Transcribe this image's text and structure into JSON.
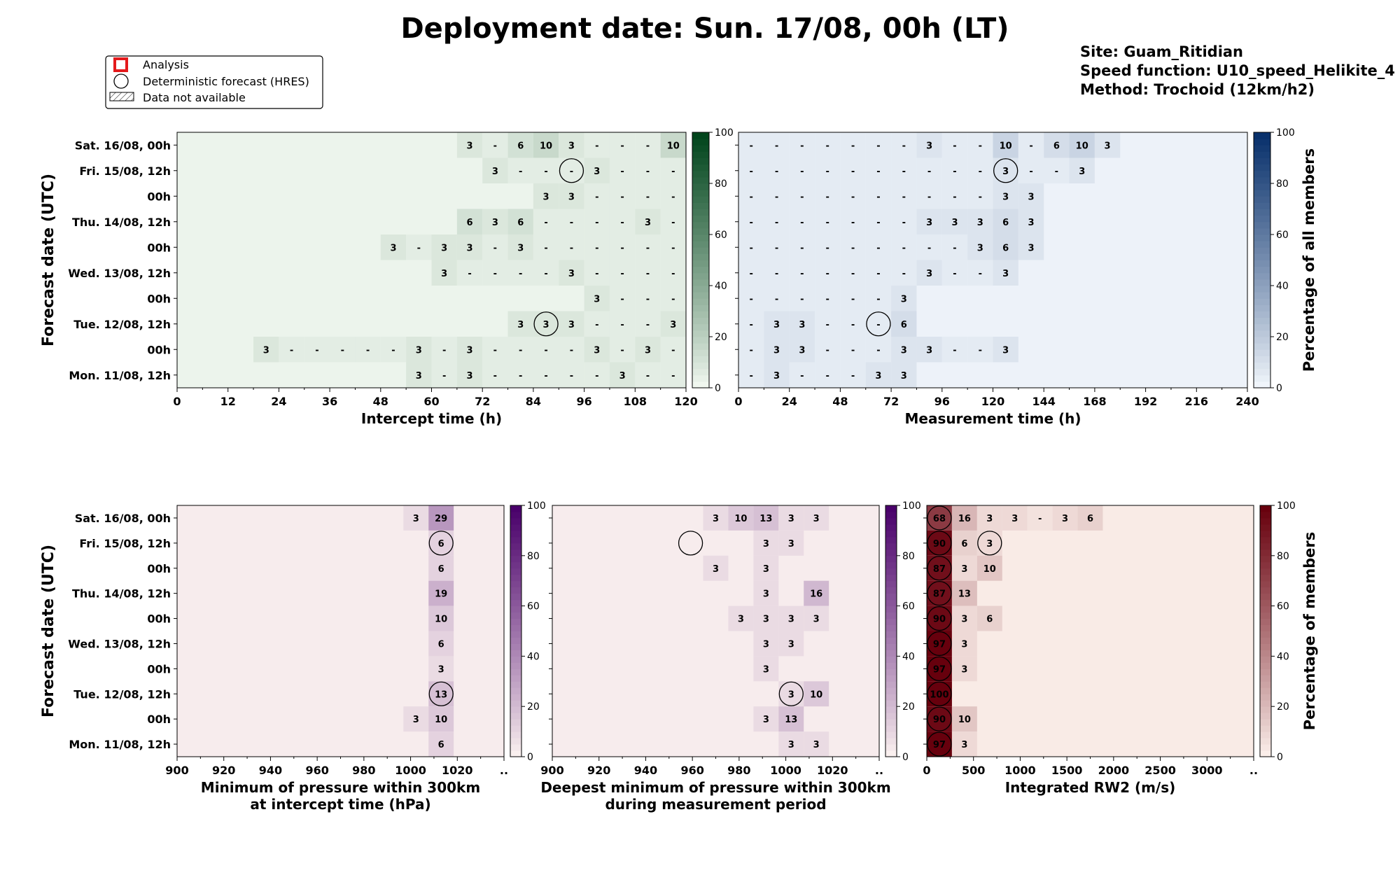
{
  "title": "Deployment date: Sun. 17/08, 00h (LT)",
  "info": {
    "site": "Site: Guam_Ritidian",
    "speed_function": "Speed function: U10_speed_Helikite_4",
    "method": "Method: Trochoid (12km/h2)"
  },
  "legend": {
    "analysis": "Analysis",
    "hres": "Deterministic forecast (HRES)",
    "na": "Data not available"
  },
  "colors": {
    "green": [
      "#f7fcf5",
      "#00441b"
    ],
    "blue": [
      "#f7fbff",
      "#08306b"
    ],
    "rdpu": [
      "#fff7f3",
      "#49006a"
    ],
    "reds": [
      "#fff5f0",
      "#67000d"
    ],
    "analysis_marker": "#e41a1c"
  },
  "chart_data": [
    {
      "id": "intercept",
      "type": "heatmap",
      "xlabel": "Intercept time (h)",
      "ylabel": "Forecast date (UTC)",
      "rows": [
        "Sat. 16/08, 00h",
        "Fri. 15/08, 12h",
        "00h",
        "Thu. 14/08, 12h",
        "00h",
        "Wed. 13/08, 12h",
        "00h",
        "Tue. 12/08, 12h",
        "00h",
        "Mon. 11/08, 12h"
      ],
      "xlim": [
        0,
        120
      ],
      "bin_width": 6,
      "xticks": [
        "0",
        "12",
        "24",
        "36",
        "48",
        "60",
        "72",
        "84",
        "96",
        "108",
        "120"
      ],
      "colormap": "green",
      "colorbar": {
        "min": 0,
        "max": 100,
        "ticks": [
          "0",
          "20",
          "40",
          "60",
          "80",
          "100"
        ],
        "label": ""
      },
      "cells": [
        [
          null,
          null,
          null,
          null,
          null,
          null,
          null,
          null,
          null,
          null,
          null,
          3,
          "-",
          6,
          10,
          3,
          "-",
          "-",
          "-",
          10
        ],
        [
          null,
          null,
          null,
          null,
          null,
          null,
          null,
          null,
          null,
          null,
          null,
          null,
          3,
          "-",
          "-",
          "-",
          3,
          "-",
          "-",
          "-"
        ],
        [
          null,
          null,
          null,
          null,
          null,
          null,
          null,
          null,
          null,
          null,
          null,
          null,
          null,
          null,
          3,
          3,
          "-",
          "-",
          "-",
          "-"
        ],
        [
          null,
          null,
          null,
          null,
          null,
          null,
          null,
          null,
          null,
          null,
          null,
          6,
          3,
          6,
          "-",
          "-",
          "-",
          "-",
          3,
          "-"
        ],
        [
          null,
          null,
          null,
          null,
          null,
          null,
          null,
          null,
          3,
          "-",
          3,
          3,
          "-",
          3,
          "-",
          "-",
          "-",
          "-",
          "-",
          "-"
        ],
        [
          null,
          null,
          null,
          null,
          null,
          null,
          null,
          null,
          null,
          null,
          3,
          "-",
          "-",
          "-",
          "-",
          3,
          "-",
          "-",
          "-",
          "-"
        ],
        [
          null,
          null,
          null,
          null,
          null,
          null,
          null,
          null,
          null,
          null,
          null,
          null,
          null,
          null,
          null,
          null,
          3,
          "-",
          "-",
          "-"
        ],
        [
          null,
          null,
          null,
          null,
          null,
          null,
          null,
          null,
          null,
          null,
          null,
          null,
          null,
          3,
          3,
          3,
          "-",
          "-",
          "-",
          3
        ],
        [
          null,
          null,
          null,
          3,
          "-",
          "-",
          "-",
          "-",
          "-",
          3,
          "-",
          3,
          "-",
          "-",
          "-",
          "-",
          3,
          "-",
          3,
          "-"
        ],
        [
          null,
          null,
          null,
          null,
          null,
          null,
          null,
          null,
          null,
          3,
          "-",
          3,
          "-",
          "-",
          "-",
          "-",
          "-",
          3,
          "-",
          "-"
        ]
      ],
      "hres": [
        {
          "row": 1,
          "x": 93
        },
        {
          "row": 7,
          "x": 87
        }
      ]
    },
    {
      "id": "measurement",
      "type": "heatmap",
      "xlabel": "Measurement time (h)",
      "ylabel": "",
      "rows": [
        "Sat. 16/08, 00h",
        "Fri. 15/08, 12h",
        "00h",
        "Thu. 14/08, 12h",
        "00h",
        "Wed. 13/08, 12h",
        "00h",
        "Tue. 12/08, 12h",
        "00h",
        "Mon. 11/08, 12h"
      ],
      "xlim": [
        0,
        240
      ],
      "bin_width": 12,
      "xticks": [
        "0",
        "24",
        "48",
        "72",
        "96",
        "120",
        "144",
        "168",
        "192",
        "216",
        "240"
      ],
      "colormap": "blue",
      "colorbar": {
        "min": 0,
        "max": 100,
        "ticks": [
          "0",
          "20",
          "40",
          "60",
          "80",
          "100"
        ],
        "label": "Percentage of all members"
      },
      "cells": [
        [
          "-",
          "-",
          "-",
          "-",
          "-",
          "-",
          "-",
          3,
          "-",
          "-",
          10,
          "-",
          6,
          10,
          3
        ],
        [
          "-",
          "-",
          "-",
          "-",
          "-",
          "-",
          "-",
          "-",
          "-",
          "-",
          3,
          "-",
          "-",
          3
        ],
        [
          "-",
          "-",
          "-",
          "-",
          "-",
          "-",
          "-",
          "-",
          "-",
          "-",
          3,
          3
        ],
        [
          "-",
          "-",
          "-",
          "-",
          "-",
          "-",
          "-",
          3,
          3,
          3,
          6,
          3
        ],
        [
          "-",
          "-",
          "-",
          "-",
          "-",
          "-",
          "-",
          "-",
          "-",
          3,
          6,
          3
        ],
        [
          "-",
          "-",
          "-",
          "-",
          "-",
          "-",
          "-",
          3,
          "-",
          "-",
          3
        ],
        [
          "-",
          "-",
          "-",
          "-",
          "-",
          "-",
          3
        ],
        [
          "-",
          3,
          3,
          "-",
          "-",
          "-",
          6
        ],
        [
          "-",
          3,
          3,
          "-",
          "-",
          "-",
          3,
          3,
          "-",
          "-",
          3
        ],
        [
          "-",
          3,
          "-",
          "-",
          "-",
          3,
          3
        ]
      ],
      "hres": [
        {
          "row": 1,
          "x": 126
        },
        {
          "row": 7,
          "x": 66
        }
      ]
    },
    {
      "id": "min-pressure",
      "type": "heatmap",
      "xlabel": [
        "Minimum of pressure within 300km",
        "at intercept time (hPa)"
      ],
      "ylabel": "Forecast date (UTC)",
      "rows": [
        "Sat. 16/08, 00h",
        "Fri. 15/08, 12h",
        "00h",
        "Thu. 14/08, 12h",
        "00h",
        "Wed. 13/08, 12h",
        "00h",
        "Tue. 12/08, 12h",
        "00h",
        "Mon. 11/08, 12h"
      ],
      "xlim": [
        900,
        1030
      ],
      "bin_width": 10,
      "bin_start": 900,
      "xticks": [
        "900",
        "920",
        "940",
        "960",
        "980",
        "1000",
        "1020",
        ".."
      ],
      "colormap": "rdpu",
      "colorbar": {
        "min": 0,
        "max": 100,
        "ticks": [
          "0",
          "20",
          "40",
          "60",
          "80",
          "100"
        ],
        "label": ""
      },
      "cells": [
        [
          null,
          null,
          null,
          null,
          null,
          null,
          null,
          null,
          null,
          3,
          29
        ],
        [
          null,
          null,
          null,
          null,
          null,
          null,
          null,
          null,
          null,
          null,
          6
        ],
        [
          null,
          null,
          null,
          null,
          null,
          null,
          null,
          null,
          null,
          null,
          6
        ],
        [
          null,
          null,
          null,
          null,
          null,
          null,
          null,
          null,
          null,
          null,
          19
        ],
        [
          null,
          null,
          null,
          null,
          null,
          null,
          null,
          null,
          null,
          null,
          10
        ],
        [
          null,
          null,
          null,
          null,
          null,
          null,
          null,
          null,
          null,
          null,
          6
        ],
        [
          null,
          null,
          null,
          null,
          null,
          null,
          null,
          null,
          null,
          null,
          3
        ],
        [
          null,
          null,
          null,
          null,
          null,
          null,
          null,
          null,
          null,
          null,
          13
        ],
        [
          null,
          null,
          null,
          null,
          null,
          null,
          null,
          null,
          null,
          3,
          10
        ],
        [
          null,
          null,
          null,
          null,
          null,
          null,
          null,
          null,
          null,
          null,
          6
        ]
      ],
      "hres": [
        {
          "row": 1,
          "x": 1005
        },
        {
          "row": 7,
          "x": 1005
        }
      ]
    },
    {
      "id": "deepest-pressure",
      "type": "heatmap",
      "xlabel": [
        "Deepest minimum of pressure within 300km",
        "during measurement period"
      ],
      "ylabel": "",
      "rows": [
        "Sat. 16/08, 00h",
        "Fri. 15/08, 12h",
        "00h",
        "Thu. 14/08, 12h",
        "00h",
        "Wed. 13/08, 12h",
        "00h",
        "Tue. 12/08, 12h",
        "00h",
        "Mon. 11/08, 12h"
      ],
      "xlim": [
        900,
        1030
      ],
      "bin_width": 10,
      "bin_start": 900,
      "xticks": [
        "900",
        "920",
        "940",
        "960",
        "980",
        "1000",
        "1020",
        ".."
      ],
      "colormap": "rdpu",
      "colorbar": {
        "min": 0,
        "max": 100,
        "ticks": [
          "0",
          "20",
          "40",
          "60",
          "80",
          "100"
        ],
        "label": ""
      },
      "cells": [
        [
          null,
          null,
          null,
          null,
          null,
          null,
          3,
          10,
          13,
          3,
          3
        ],
        [
          null,
          null,
          null,
          null,
          null,
          null,
          null,
          null,
          3,
          3
        ],
        [
          null,
          null,
          null,
          null,
          null,
          null,
          3,
          null,
          3
        ],
        [
          null,
          null,
          null,
          null,
          null,
          null,
          null,
          null,
          3,
          null,
          16
        ],
        [
          null,
          null,
          null,
          null,
          null,
          null,
          null,
          3,
          3,
          3,
          3
        ],
        [
          null,
          null,
          null,
          null,
          null,
          null,
          null,
          null,
          3,
          3
        ],
        [
          null,
          null,
          null,
          null,
          null,
          null,
          null,
          null,
          3
        ],
        [
          null,
          null,
          null,
          null,
          null,
          null,
          null,
          null,
          null,
          3,
          10
        ],
        [
          null,
          null,
          null,
          null,
          null,
          null,
          null,
          null,
          3,
          13
        ],
        [
          null,
          null,
          null,
          null,
          null,
          null,
          null,
          null,
          null,
          3,
          3
        ]
      ],
      "hres": [
        {
          "row": 1,
          "x": 955
        },
        {
          "row": 7,
          "x": 995
        }
      ]
    },
    {
      "id": "rw2",
      "type": "heatmap",
      "xlabel": "Integrated RW2 (m/s)",
      "ylabel": "",
      "rows": [
        "Sat. 16/08, 00h",
        "Fri. 15/08, 12h",
        "00h",
        "Thu. 14/08, 12h",
        "00h",
        "Wed. 13/08, 12h",
        "00h",
        "Tue. 12/08, 12h",
        "00h",
        "Mon. 11/08, 12h"
      ],
      "xlim": [
        0,
        3250
      ],
      "bin_width": 250,
      "bin_start": 0,
      "xticks": [
        "0",
        "500",
        "1000",
        "1500",
        "2000",
        "2500",
        "3000",
        ".."
      ],
      "colormap": "reds",
      "colorbar": {
        "min": 0,
        "max": 100,
        "ticks": [
          "0",
          "20",
          "40",
          "60",
          "80",
          "100"
        ],
        "label": "Percentage of members"
      },
      "cells": [
        [
          68,
          16,
          3,
          3,
          "-",
          3,
          6
        ],
        [
          90,
          6,
          3
        ],
        [
          87,
          3,
          10
        ],
        [
          87,
          13
        ],
        [
          90,
          3,
          6
        ],
        [
          97,
          3
        ],
        [
          97,
          3
        ],
        [
          100
        ],
        [
          90,
          10
        ],
        [
          97,
          3
        ]
      ],
      "hres": [
        {
          "row": 0,
          "x": 125
        },
        {
          "row": 1,
          "x": 125
        },
        {
          "row": 1,
          "x": 625
        },
        {
          "row": 2,
          "x": 125
        },
        {
          "row": 3,
          "x": 125
        },
        {
          "row": 4,
          "x": 125
        },
        {
          "row": 5,
          "x": 125
        },
        {
          "row": 6,
          "x": 125
        },
        {
          "row": 7,
          "x": 125
        },
        {
          "row": 8,
          "x": 125
        },
        {
          "row": 9,
          "x": 125
        }
      ]
    }
  ]
}
